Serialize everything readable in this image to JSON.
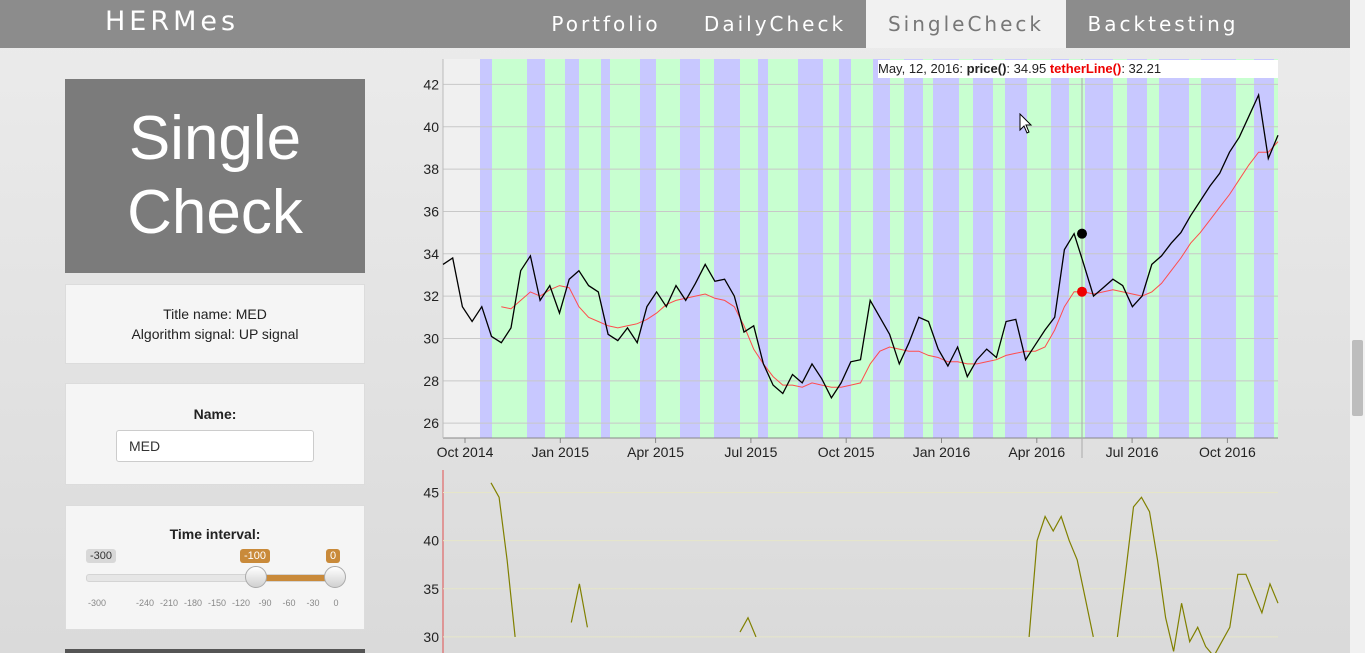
{
  "nav": {
    "brand": "HERMes",
    "items": [
      "Portfolio",
      "DailyCheck",
      "SingleCheck",
      "Backtesting"
    ],
    "active": "SingleCheck"
  },
  "title_box": {
    "line1": "Single",
    "line2": "Check"
  },
  "info": {
    "title_name": "Title name: MED",
    "signal": "Algorithm signal: UP signal"
  },
  "name_panel": {
    "label": "Name:",
    "value": "MED"
  },
  "time_panel": {
    "label": "Time interval:",
    "min_label": "-300",
    "from": "-100",
    "to": "0",
    "ticks": [
      "-300",
      "-240",
      "-210",
      "-180",
      "-150",
      "-120",
      "-90",
      "-60",
      "-30",
      "0"
    ]
  },
  "tooltip": {
    "date": "May, 12, 2016:",
    "price_label": "price()",
    "price": "34.95",
    "tether_label": "tetherLine()",
    "tether": "32.21"
  },
  "colors": {
    "buy_band": "#c8c8ff",
    "hold_band": "#c8ffd0",
    "price": "#000000",
    "tether": "#ff4d4d",
    "osc": "#808000"
  },
  "chart_data": [
    {
      "type": "line",
      "x_ticks": [
        "Oct 2014",
        "Jan 2015",
        "Apr 2015",
        "Jul 2015",
        "Oct 2015",
        "Jan 2016",
        "Apr 2016",
        "Jul 2016",
        "Oct 2016"
      ],
      "y_ticks": [
        "26",
        "28",
        "30",
        "32",
        "34",
        "36",
        "38",
        "40",
        "42"
      ],
      "ylim": [
        25.3,
        43.2
      ],
      "grid": true,
      "series": [
        {
          "name": "price()",
          "values": [
            33.5,
            33.8,
            31.5,
            30.8,
            31.5,
            30.1,
            29.8,
            30.5,
            33.2,
            33.9,
            31.8,
            32.5,
            31.2,
            32.8,
            33.2,
            32.5,
            32.2,
            30.2,
            29.9,
            30.5,
            29.8,
            31.5,
            32.2,
            31.5,
            32.5,
            31.8,
            32.6,
            33.5,
            32.7,
            32.8,
            32.0,
            30.3,
            30.6,
            28.8,
            27.8,
            27.4,
            28.3,
            27.9,
            28.8,
            28.1,
            27.2,
            27.9,
            28.9,
            29.0,
            31.8,
            31.0,
            30.2,
            28.8,
            29.8,
            31.0,
            30.8,
            29.5,
            28.7,
            29.6,
            28.2,
            29.0,
            29.5,
            29.1,
            30.8,
            30.9,
            29.0,
            29.7,
            30.4,
            31.0,
            34.2,
            34.95,
            33.5,
            32.0,
            32.4,
            32.8,
            32.5,
            31.5,
            32.0,
            33.5,
            33.9,
            34.5,
            35.0,
            35.8,
            36.5,
            37.2,
            37.8,
            38.8,
            39.5,
            40.5,
            41.5,
            38.5,
            39.6
          ]
        },
        {
          "name": "tetherLine()",
          "values": [
            null,
            null,
            null,
            null,
            null,
            null,
            31.5,
            31.4,
            31.8,
            32.2,
            32.0,
            32.3,
            32.5,
            32.4,
            31.5,
            31.0,
            30.8,
            30.6,
            30.5,
            30.6,
            30.7,
            30.9,
            31.2,
            31.6,
            31.8,
            31.9,
            32.0,
            32.1,
            31.9,
            31.8,
            31.5,
            30.6,
            29.5,
            28.8,
            28.2,
            27.8,
            27.8,
            27.7,
            27.9,
            27.8,
            27.7,
            27.7,
            27.8,
            27.9,
            28.8,
            29.4,
            29.6,
            29.5,
            29.4,
            29.4,
            29.2,
            29.1,
            28.9,
            28.9,
            28.8,
            28.8,
            28.9,
            29.0,
            29.2,
            29.3,
            29.4,
            29.4,
            29.6,
            30.4,
            31.5,
            32.21,
            32.2,
            32.1,
            32.2,
            32.3,
            32.2,
            32.1,
            32.0,
            32.2,
            32.6,
            33.2,
            33.8,
            34.5,
            35.0,
            35.6,
            36.2,
            36.8,
            37.5,
            38.2,
            38.8,
            38.8,
            39.3
          ]
        }
      ]
    },
    {
      "type": "line",
      "y_ticks": [
        "30",
        "35",
        "40",
        "45"
      ],
      "ylim": [
        27.5,
        46.5
      ],
      "series": [
        {
          "values": [
            null,
            46.0,
            44.5,
            38.0,
            30.0,
            null,
            null,
            null,
            null,
            null,
            null,
            31.5,
            35.5,
            31.0,
            null,
            null,
            null,
            null,
            null,
            null,
            null,
            null,
            null,
            null,
            null,
            null,
            null,
            null,
            null,
            null,
            null,
            null,
            30.5,
            32.0,
            30.0,
            null,
            null,
            null,
            null,
            null,
            null,
            null,
            null,
            null,
            null,
            null,
            null,
            null,
            null,
            null,
            null,
            null,
            null,
            null,
            null,
            null,
            null,
            null,
            null,
            null,
            null,
            null,
            null,
            null,
            null,
            null,
            null,
            null,
            30.0,
            40.0,
            42.5,
            41.0,
            42.5,
            40.0,
            38.0,
            34.0,
            30.0,
            null,
            null,
            30.0,
            36.5,
            43.5,
            44.5,
            43.0,
            38.0,
            32.0,
            28.5,
            33.5,
            29.5,
            31.0,
            29.0,
            28.0,
            29.5,
            31.0,
            36.5,
            36.5,
            34.5,
            32.5,
            35.5,
            33.5
          ]
        }
      ]
    }
  ]
}
